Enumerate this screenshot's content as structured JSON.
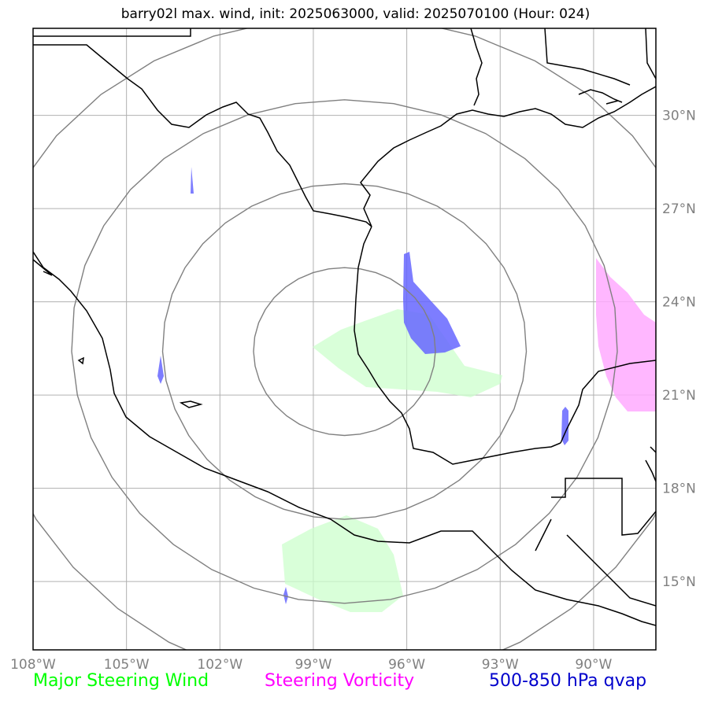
{
  "title": "barry02l max. wind, init: 2025063000, valid: 2025070100 (Hour: 024)",
  "map": {
    "lon_range": [
      -108,
      -88
    ],
    "lat_range": [
      12.8,
      32.8
    ],
    "lon_ticks": [
      -108,
      -105,
      -102,
      -99,
      -96,
      -93,
      -90
    ],
    "lat_ticks": [
      15,
      18,
      21,
      24,
      27,
      30
    ],
    "lon_labels": [
      "108°W",
      "105°W",
      "102°W",
      "99°W",
      "96°W",
      "93°W",
      "90°W"
    ],
    "lat_labels": [
      "15°N",
      "18°N",
      "21°N",
      "24°N",
      "27°N",
      "30°N"
    ],
    "storm_center": {
      "lon": -98.0,
      "lat": 22.4
    },
    "range_rings_deg": [
      2.7,
      5.4,
      8.1,
      10.8
    ],
    "colors": {
      "coast": "#000000",
      "grid": "#b0b0b0",
      "rings": "#808080",
      "steering_wind": "#ccffcc",
      "steering_vorticity": "#ffaaff",
      "qvap": "#6666ff"
    }
  },
  "legend": {
    "steering_wind": "Major Steering Wind",
    "steering_vorticity": "Steering Vorticity",
    "qvap": "500-850 hPa qvap"
  }
}
